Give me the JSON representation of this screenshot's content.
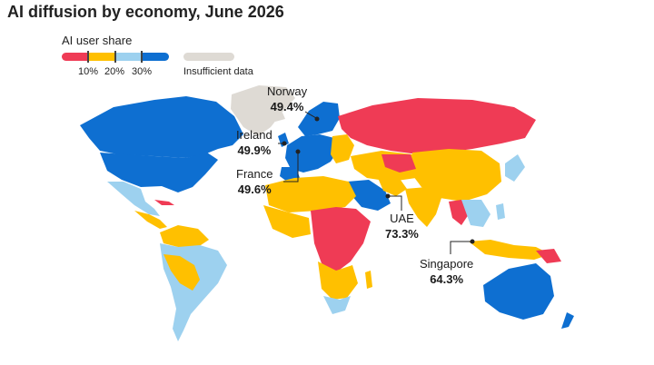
{
  "title": "AI diffusion by economy, June 2026",
  "legend": {
    "title": "AI user share",
    "ticks": [
      "10%",
      "20%",
      "30%"
    ],
    "insufficient_label": "Insufficient data",
    "colors": {
      "under_10": "#ef3b55",
      "10_20": "#ffc000",
      "20_30": "#9dd1ef",
      "over_30": "#0e6fd1",
      "insufficient": "#dedad4"
    }
  },
  "callouts": [
    {
      "id": "norway",
      "name": "Norway",
      "value": "49.4%",
      "value_pct": 49.4
    },
    {
      "id": "ireland",
      "name": "Ireland",
      "value": "49.9%",
      "value_pct": 49.9
    },
    {
      "id": "france",
      "name": "France",
      "value": "49.6%",
      "value_pct": 49.6
    },
    {
      "id": "uae",
      "name": "UAE",
      "value": "73.3%",
      "value_pct": 73.3
    },
    {
      "id": "singapore",
      "name": "Singapore",
      "value": "64.3%",
      "value_pct": 64.3
    }
  ]
}
